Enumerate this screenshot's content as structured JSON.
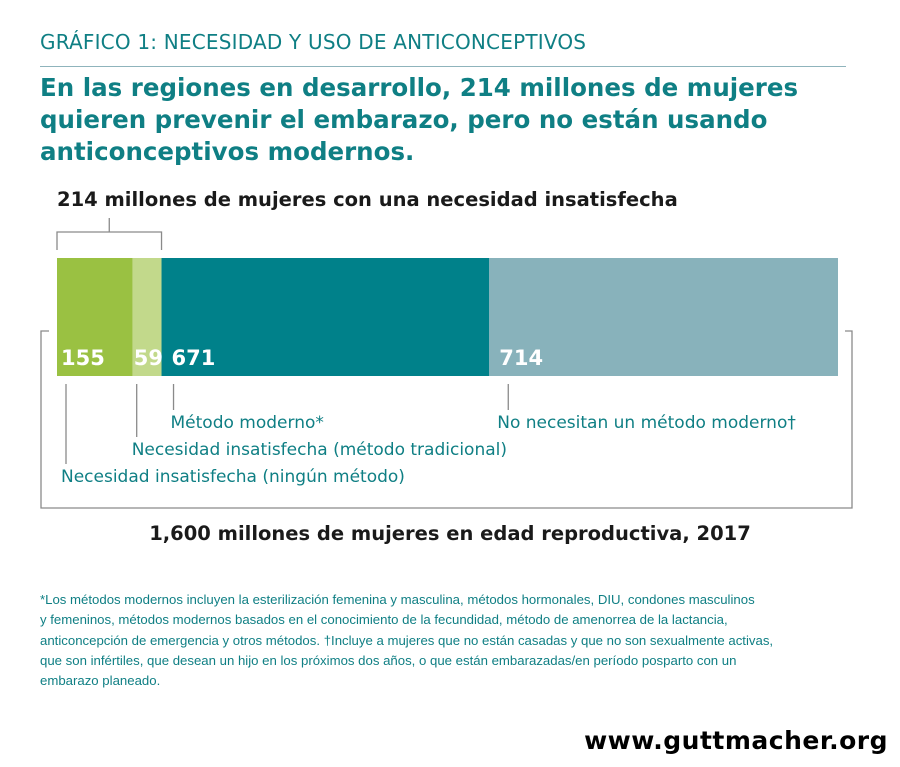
{
  "kicker": "GRÁFICO 1: NECESIDAD Y USO DE ANTICONCEPTIVOS",
  "headline": "En las regiones en desarrollo, 214 millones de mujeres quieren prevenir el embarazo, pero no están usando anticonceptivos modernos.",
  "url": "www.guttmacher.org",
  "colors": {
    "accent_text": "#0f7f84",
    "bracket": "#8a8a8a"
  },
  "footnote": [
    "*Los métodos modernos incluyen la esterilización femenina y masculina, métodos hormonales, DIU, condones masculinos",
    "y femeninos, métodos modernos basados en el conocimiento de la fecundidad, método de amenorrea de la lactancia,",
    "anticoncepción de emergencia y otros métodos. †Incluye a mujeres que no están casadas y que no son sexualmente activas,",
    "que son infértiles, que desean un hijo en los próximos dos años, o que están embarazadas/en período posparto con un",
    "embarazo planeado."
  ],
  "chart_data": {
    "type": "bar",
    "orientation": "horizontal-stacked",
    "title": "",
    "unit": "millones de mujeres",
    "total": 1599,
    "segments": [
      {
        "name": "Necesidad insatisfecha (ningún método)",
        "value": 155,
        "label": "155",
        "color": "#9ac142"
      },
      {
        "name": "Necesidad insatisfecha (método tradicional)",
        "value": 59,
        "label": "59",
        "color": "#c2d98b"
      },
      {
        "name": "Método moderno*",
        "value": 671,
        "label": "671",
        "color": "#00818a"
      },
      {
        "name": "No necesitan un método moderno†",
        "value": 714,
        "label": "714",
        "color": "#88b2bb"
      }
    ],
    "brackets": {
      "unmet_need_label": "214 millones de mujeres con una necesidad insatisfecha",
      "total_label": "1,600 millones de mujeres en edad reproductiva, 2017"
    }
  }
}
